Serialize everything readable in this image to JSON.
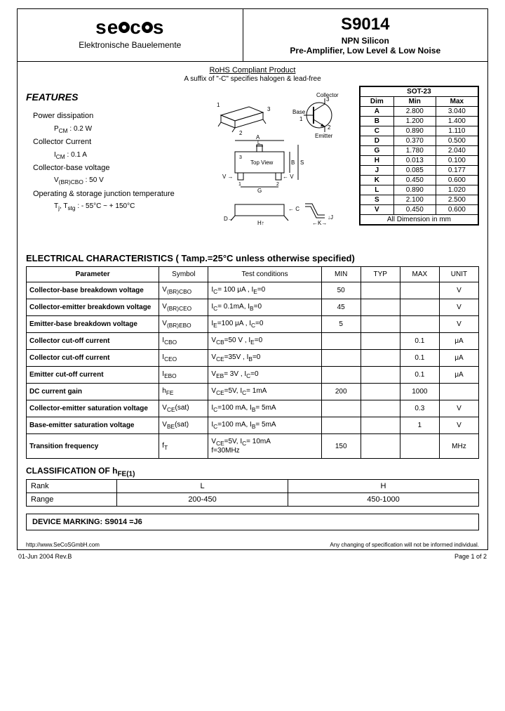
{
  "header": {
    "company": "secos",
    "tagline": "Elektronische Bauelemente",
    "part": "S9014",
    "line1": "NPN Silicon",
    "line2": "Pre-Amplifier, Low Level & Low Noise"
  },
  "rohs": "RoHS Compliant Product",
  "suffix": "A suffix of \"-C\" specifies halogen & lead-free",
  "features": {
    "title": "FEATURES",
    "items": [
      {
        "label": "Power dissipation",
        "sub": "P<sub>CM</sub> : 0.2  W"
      },
      {
        "label": "Collector Current",
        "sub": "I<sub>CM</sub> : 0.1 A"
      },
      {
        "label": "Collector-base voltage",
        "sub": "V<sub>(BR)CBO</sub> : 50 V"
      },
      {
        "label": "Operating & storage junction temperature",
        "sub": "T<sub>j</sub>, T<sub>stg</sub> : - 55°C ~ + 150°C"
      }
    ]
  },
  "package": {
    "title": "SOT-23",
    "headers": [
      "Dim",
      "Min",
      "Max"
    ],
    "rows": [
      [
        "A",
        "2.800",
        "3.040"
      ],
      [
        "B",
        "1.200",
        "1.400"
      ],
      [
        "C",
        "0.890",
        "1.110"
      ],
      [
        "D",
        "0.370",
        "0.500"
      ],
      [
        "G",
        "1.780",
        "2.040"
      ],
      [
        "H",
        "0.013",
        "0.100"
      ],
      [
        "J",
        "0.085",
        "0.177"
      ],
      [
        "K",
        "0.450",
        "0.600"
      ],
      [
        "L",
        "0.890",
        "1.020"
      ],
      [
        "S",
        "2.100",
        "2.500"
      ],
      [
        "V",
        "0.450",
        "0.600"
      ]
    ],
    "caption": "All Dimension in mm"
  },
  "elec": {
    "title": "ELECTRICAL CHARACTERISTICS ( Tamp.=25°C unless otherwise specified)",
    "headers": [
      "Parameter",
      "Symbol",
      "Test    conditions",
      "MIN",
      "TYP",
      "MAX",
      "UNIT"
    ],
    "rows": [
      {
        "p": "Collector-base breakdown voltage",
        "s": "V<sub>(BR)CBO</sub>",
        "c": "I<sub>C</sub>= 100 μA ,    I<sub>E</sub>=0",
        "min": "50",
        "typ": "",
        "max": "",
        "u": "V"
      },
      {
        "p": "Collector-emitter breakdown voltage",
        "s": "V<sub>(BR)CEO</sub>",
        "c": "I<sub>C</sub>= 0.1mA,   I<sub>B</sub>=0",
        "min": "45",
        "typ": "",
        "max": "",
        "u": "V"
      },
      {
        "p": "Emitter-base breakdown voltage",
        "s": "V<sub>(BR)EBO</sub>",
        "c": "I<sub>E</sub>=100 μA ,   I<sub>C</sub>=0",
        "min": "5",
        "typ": "",
        "max": "",
        "u": "V"
      },
      {
        "p": "Collector cut-off current",
        "s": "I<sub>CBO</sub>",
        "c": "V<sub>CB</sub>=50 V ,    I<sub>E</sub>=0",
        "min": "",
        "typ": "",
        "max": "0.1",
        "u": "μA"
      },
      {
        "p": "Collector cut-off current",
        "s": "I<sub>CEO</sub>",
        "c": "V<sub>CE</sub>=35V ,   I<sub>B</sub>=0",
        "min": "",
        "typ": "",
        "max": "0.1",
        "u": "μA"
      },
      {
        "p": "Emitter cut-off current",
        "s": "I<sub>EBO</sub>",
        "c": "V<sub>EB</sub>= 3V ,     I<sub>C</sub>=0",
        "min": "",
        "typ": "",
        "max": "0.1",
        "u": "μA"
      },
      {
        "p": "DC current gain",
        "s": "h<sub>FE</sub>",
        "c": "V<sub>CE</sub>=5V,   I<sub>C</sub>= 1mA",
        "min": "200",
        "typ": "",
        "max": "1000",
        "u": ""
      },
      {
        "p": "Collector-emitter saturation voltage",
        "s": "V<sub>CE</sub>(sat)",
        "c": "I<sub>C</sub>=100 mA, I<sub>B</sub>= 5mA",
        "min": "",
        "typ": "",
        "max": "0.3",
        "u": "V"
      },
      {
        "p": "Base-emitter saturation voltage",
        "s": "V<sub>BE</sub>(sat)",
        "c": "I<sub>C</sub>=100 mA, I<sub>B</sub>= 5mA",
        "min": "",
        "typ": "",
        "max": "1",
        "u": "V"
      },
      {
        "p": "Transition frequency",
        "s": "f<sub>T</sub>",
        "c": "V<sub>CE</sub>=5V,    I<sub>C</sub>= 10mA<br>f=30MHz",
        "min": "150",
        "typ": "",
        "max": "",
        "u": "MHz"
      }
    ]
  },
  "classification": {
    "title": "CLASSIFICATION OF   h<sub>FE(1)</sub>",
    "rows": [
      [
        "Rank",
        "L",
        "H"
      ],
      [
        "Range",
        "200-450",
        "450-1000"
      ]
    ]
  },
  "marking": "DEVICE MARKING: S9014 =J6",
  "footer_in": {
    "left": "http://www.SeCoSGmbH.com",
    "right": "Any changing of specification will not be informed individual."
  },
  "footer_out": {
    "left": "01-Jun 2004 Rev.B",
    "right": "Page 1 of 2"
  }
}
